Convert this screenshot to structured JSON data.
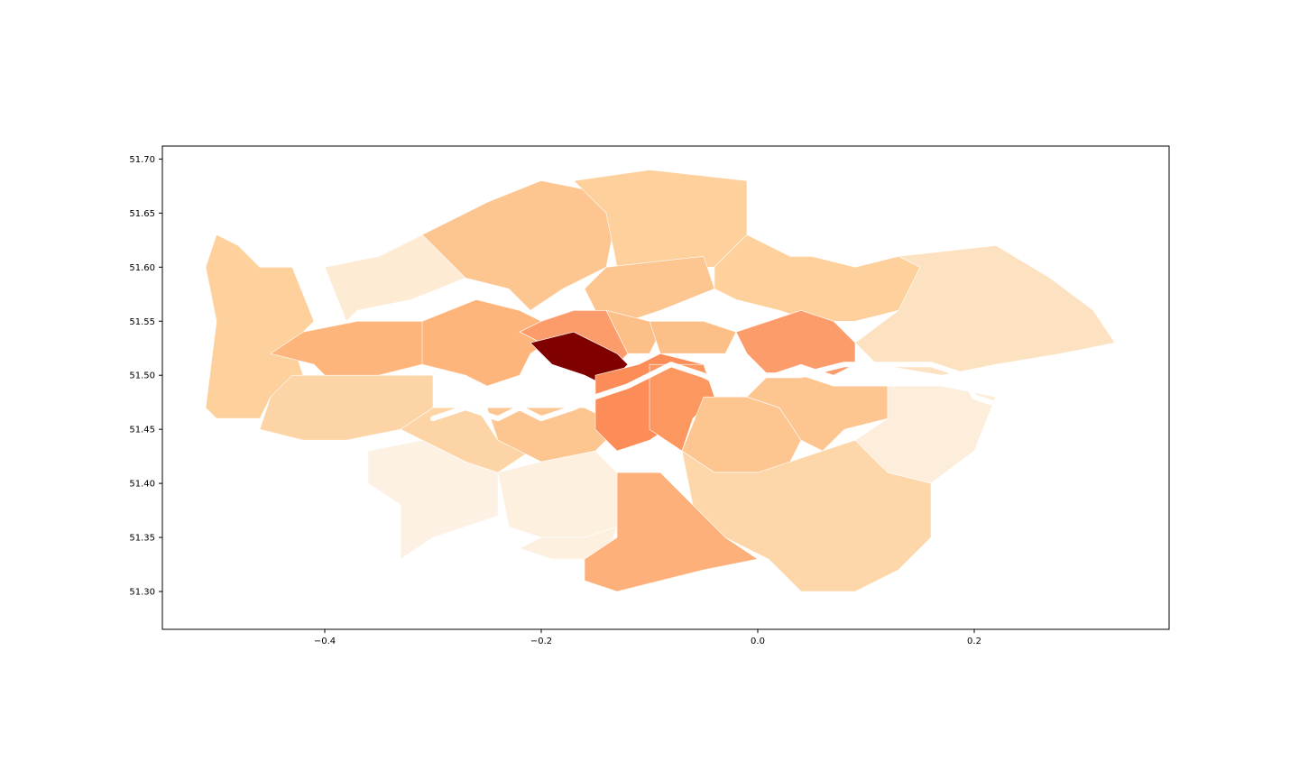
{
  "chart_data": {
    "type": "choropleth",
    "title": "",
    "xlabel": "",
    "ylabel": "",
    "xlim": [
      -0.55,
      0.38
    ],
    "ylim": [
      51.265,
      51.712
    ],
    "x_ticks": [
      -0.4,
      -0.2,
      0.0,
      0.2
    ],
    "x_tick_labels": [
      "−0.4",
      "−0.2",
      "0.0",
      "0.2"
    ],
    "y_ticks": [
      51.3,
      51.35,
      51.4,
      51.45,
      51.5,
      51.55,
      51.6,
      51.65,
      51.7
    ],
    "y_tick_labels": [
      "51.30",
      "51.35",
      "51.40",
      "51.45",
      "51.50",
      "51.55",
      "51.60",
      "51.65",
      "51.70"
    ],
    "grid": false,
    "legend": "none",
    "colormap": "Oranges",
    "river_color": "#ffffff",
    "regions": [
      {
        "color": "#fdd09c",
        "points": [
          [
            -0.5,
            51.63
          ],
          [
            -0.48,
            51.62
          ],
          [
            -0.46,
            51.6
          ],
          [
            -0.43,
            51.6
          ],
          [
            -0.41,
            51.55
          ],
          [
            -0.43,
            51.53
          ],
          [
            -0.42,
            51.5
          ],
          [
            -0.45,
            51.48
          ],
          [
            -0.46,
            51.46
          ],
          [
            -0.5,
            51.46
          ],
          [
            -0.51,
            51.47
          ],
          [
            -0.5,
            51.55
          ],
          [
            -0.51,
            51.6
          ]
        ]
      },
      {
        "color": "#fdebd4",
        "points": [
          [
            -0.4,
            51.6
          ],
          [
            -0.35,
            51.61
          ],
          [
            -0.31,
            51.63
          ],
          [
            -0.27,
            51.59
          ],
          [
            -0.32,
            51.57
          ],
          [
            -0.37,
            51.56
          ],
          [
            -0.38,
            51.55
          ]
        ]
      },
      {
        "color": "#fdc590",
        "points": [
          [
            -0.31,
            51.63
          ],
          [
            -0.25,
            51.66
          ],
          [
            -0.2,
            51.68
          ],
          [
            -0.15,
            51.67
          ],
          [
            -0.13,
            51.65
          ],
          [
            -0.14,
            51.6
          ],
          [
            -0.18,
            51.58
          ],
          [
            -0.21,
            51.56
          ],
          [
            -0.23,
            51.58
          ],
          [
            -0.27,
            51.59
          ]
        ]
      },
      {
        "color": "#fdd09c",
        "points": [
          [
            -0.17,
            51.68
          ],
          [
            -0.1,
            51.69
          ],
          [
            -0.01,
            51.68
          ],
          [
            -0.01,
            51.63
          ],
          [
            -0.04,
            51.6
          ],
          [
            -0.13,
            51.6
          ],
          [
            -0.14,
            51.65
          ]
        ]
      },
      {
        "color": "#fdc590",
        "points": [
          [
            -0.14,
            51.6
          ],
          [
            -0.05,
            51.61
          ],
          [
            -0.04,
            51.58
          ],
          [
            -0.09,
            51.56
          ],
          [
            -0.12,
            51.55
          ],
          [
            -0.15,
            51.56
          ],
          [
            -0.16,
            51.58
          ]
        ]
      },
      {
        "color": "#fdd09c",
        "points": [
          [
            -0.01,
            51.63
          ],
          [
            0.03,
            51.61
          ],
          [
            0.05,
            51.61
          ],
          [
            0.09,
            51.6
          ],
          [
            0.13,
            51.61
          ],
          [
            0.15,
            51.6
          ],
          [
            0.13,
            51.56
          ],
          [
            0.09,
            51.55
          ],
          [
            0.05,
            51.55
          ],
          [
            0.02,
            51.56
          ],
          [
            -0.02,
            51.57
          ],
          [
            -0.04,
            51.58
          ],
          [
            -0.04,
            51.6
          ]
        ]
      },
      {
        "color": "#fde2c2",
        "points": [
          [
            0.13,
            51.61
          ],
          [
            0.22,
            51.62
          ],
          [
            0.27,
            51.59
          ],
          [
            0.31,
            51.56
          ],
          [
            0.33,
            51.53
          ],
          [
            0.28,
            51.52
          ],
          [
            0.22,
            51.51
          ],
          [
            0.17,
            51.5
          ],
          [
            0.11,
            51.51
          ],
          [
            0.09,
            51.53
          ],
          [
            0.13,
            51.56
          ],
          [
            0.15,
            51.6
          ]
        ]
      },
      {
        "color": "#fdb57c",
        "points": [
          [
            -0.31,
            51.55
          ],
          [
            -0.26,
            51.57
          ],
          [
            -0.22,
            51.56
          ],
          [
            -0.18,
            51.54
          ],
          [
            -0.21,
            51.52
          ],
          [
            -0.22,
            51.5
          ],
          [
            -0.25,
            51.49
          ],
          [
            -0.27,
            51.5
          ],
          [
            -0.31,
            51.51
          ],
          [
            -0.35,
            51.5
          ],
          [
            -0.37,
            51.52
          ],
          [
            -0.42,
            51.54
          ]
        ]
      },
      {
        "color": "#fdb57c",
        "points": [
          [
            -0.42,
            51.54
          ],
          [
            -0.37,
            51.55
          ],
          [
            -0.31,
            51.55
          ],
          [
            -0.31,
            51.51
          ],
          [
            -0.35,
            51.5
          ],
          [
            -0.39,
            51.49
          ],
          [
            -0.41,
            51.51
          ],
          [
            -0.45,
            51.52
          ]
        ]
      },
      {
        "color": "#fc9c6b",
        "points": [
          [
            -0.2,
            51.55
          ],
          [
            -0.17,
            51.56
          ],
          [
            -0.14,
            51.56
          ],
          [
            -0.12,
            51.52
          ],
          [
            -0.13,
            51.51
          ],
          [
            -0.16,
            51.53
          ],
          [
            -0.2,
            51.53
          ],
          [
            -0.22,
            51.54
          ]
        ]
      },
      {
        "color": "#800000",
        "points": [
          [
            -0.21,
            51.53
          ],
          [
            -0.17,
            51.54
          ],
          [
            -0.15,
            51.53
          ],
          [
            -0.13,
            51.52
          ],
          [
            -0.12,
            51.51
          ],
          [
            -0.14,
            51.49
          ],
          [
            -0.16,
            51.5
          ],
          [
            -0.19,
            51.51
          ]
        ]
      },
      {
        "color": "#fdbf88",
        "points": [
          [
            -0.14,
            51.56
          ],
          [
            -0.1,
            51.55
          ],
          [
            -0.09,
            51.54
          ],
          [
            -0.1,
            51.52
          ],
          [
            -0.12,
            51.52
          ]
        ]
      },
      {
        "color": "#fdbf88",
        "points": [
          [
            -0.1,
            51.55
          ],
          [
            -0.05,
            51.55
          ],
          [
            -0.02,
            51.54
          ],
          [
            -0.03,
            51.52
          ],
          [
            -0.07,
            51.52
          ],
          [
            -0.09,
            51.52
          ]
        ]
      },
      {
        "color": "#fc9c6b",
        "points": [
          [
            -0.02,
            51.54
          ],
          [
            0.04,
            51.56
          ],
          [
            0.07,
            51.55
          ],
          [
            0.09,
            51.53
          ],
          [
            0.09,
            51.51
          ],
          [
            0.07,
            51.5
          ],
          [
            0.04,
            51.51
          ],
          [
            0.01,
            51.5
          ],
          [
            -0.01,
            51.52
          ]
        ]
      },
      {
        "color": "#fdd4a5",
        "points": [
          [
            -0.43,
            51.5
          ],
          [
            -0.35,
            51.5
          ],
          [
            -0.3,
            51.5
          ],
          [
            -0.3,
            51.47
          ],
          [
            -0.33,
            51.45
          ],
          [
            -0.38,
            51.44
          ],
          [
            -0.42,
            51.44
          ],
          [
            -0.46,
            51.45
          ],
          [
            -0.45,
            51.48
          ]
        ]
      },
      {
        "color": "#fdd4a5",
        "points": [
          [
            -0.33,
            51.45
          ],
          [
            -0.3,
            51.47
          ],
          [
            -0.26,
            51.47
          ],
          [
            -0.24,
            51.44
          ],
          [
            -0.21,
            51.43
          ],
          [
            -0.24,
            51.41
          ],
          [
            -0.27,
            51.42
          ],
          [
            -0.31,
            51.44
          ]
        ]
      },
      {
        "color": "#fdf1e4",
        "points": [
          [
            -0.31,
            51.44
          ],
          [
            -0.27,
            51.42
          ],
          [
            -0.24,
            51.41
          ],
          [
            -0.24,
            51.37
          ],
          [
            -0.3,
            51.35
          ],
          [
            -0.33,
            51.33
          ],
          [
            -0.33,
            51.38
          ],
          [
            -0.36,
            51.4
          ],
          [
            -0.36,
            51.43
          ]
        ]
      },
      {
        "color": "#fdf0df",
        "points": [
          [
            -0.24,
            51.41
          ],
          [
            -0.2,
            51.42
          ],
          [
            -0.15,
            51.43
          ],
          [
            -0.13,
            51.41
          ],
          [
            -0.13,
            51.36
          ],
          [
            -0.16,
            51.35
          ],
          [
            -0.2,
            51.35
          ],
          [
            -0.23,
            51.36
          ]
        ]
      },
      {
        "color": "#fdf0df",
        "points": [
          [
            -0.2,
            51.35
          ],
          [
            -0.16,
            51.35
          ],
          [
            -0.13,
            51.36
          ],
          [
            -0.14,
            51.33
          ],
          [
            -0.19,
            51.33
          ],
          [
            -0.22,
            51.34
          ]
        ]
      },
      {
        "color": "#fdc590",
        "points": [
          [
            -0.25,
            51.47
          ],
          [
            -0.2,
            51.47
          ],
          [
            -0.16,
            51.47
          ],
          [
            -0.14,
            51.46
          ],
          [
            -0.14,
            51.44
          ],
          [
            -0.15,
            51.43
          ],
          [
            -0.2,
            51.42
          ],
          [
            -0.24,
            51.44
          ]
        ]
      },
      {
        "color": "#fc8d59",
        "points": [
          [
            -0.15,
            51.5
          ],
          [
            -0.11,
            51.51
          ],
          [
            -0.09,
            51.52
          ],
          [
            -0.05,
            51.51
          ],
          [
            -0.06,
            51.48
          ],
          [
            -0.07,
            51.46
          ],
          [
            -0.1,
            51.44
          ],
          [
            -0.13,
            51.43
          ],
          [
            -0.15,
            51.45
          ]
        ]
      },
      {
        "color": "#fd9760",
        "points": [
          [
            -0.1,
            51.51
          ],
          [
            -0.07,
            51.51
          ],
          [
            -0.05,
            51.51
          ],
          [
            -0.04,
            51.48
          ],
          [
            -0.06,
            51.46
          ],
          [
            -0.07,
            51.43
          ],
          [
            -0.1,
            51.45
          ]
        ]
      },
      {
        "color": "#fdc590",
        "points": [
          [
            -0.05,
            51.48
          ],
          [
            -0.01,
            51.48
          ],
          [
            0.02,
            51.47
          ],
          [
            0.04,
            51.44
          ],
          [
            0.03,
            51.42
          ],
          [
            0.0,
            51.41
          ],
          [
            -0.04,
            51.41
          ],
          [
            -0.07,
            51.43
          ]
        ]
      },
      {
        "color": "#fdc590",
        "points": [
          [
            0.01,
            51.5
          ],
          [
            0.04,
            51.5
          ],
          [
            0.07,
            51.49
          ],
          [
            0.12,
            51.49
          ],
          [
            0.12,
            51.46
          ],
          [
            0.08,
            51.45
          ],
          [
            0.06,
            51.43
          ],
          [
            0.04,
            51.44
          ],
          [
            0.02,
            51.47
          ],
          [
            -0.01,
            51.48
          ]
        ]
      },
      {
        "color": "#fdeedb",
        "points": [
          [
            0.12,
            51.49
          ],
          [
            0.17,
            51.49
          ],
          [
            0.22,
            51.48
          ],
          [
            0.2,
            51.43
          ],
          [
            0.16,
            51.4
          ],
          [
            0.12,
            51.41
          ],
          [
            0.09,
            51.44
          ],
          [
            0.12,
            51.46
          ]
        ]
      },
      {
        "color": "#fdd6a9",
        "points": [
          [
            -0.07,
            51.43
          ],
          [
            -0.04,
            51.41
          ],
          [
            0.0,
            51.41
          ],
          [
            0.03,
            51.42
          ],
          [
            0.06,
            51.43
          ],
          [
            0.09,
            51.44
          ],
          [
            0.12,
            51.41
          ],
          [
            0.16,
            51.4
          ],
          [
            0.16,
            51.35
          ],
          [
            0.13,
            51.32
          ],
          [
            0.09,
            51.3
          ],
          [
            0.04,
            51.3
          ],
          [
            0.01,
            51.33
          ],
          [
            -0.03,
            51.35
          ],
          [
            -0.06,
            51.38
          ]
        ]
      },
      {
        "color": "#fdb07a",
        "points": [
          [
            -0.13,
            51.41
          ],
          [
            -0.09,
            51.41
          ],
          [
            -0.06,
            51.38
          ],
          [
            -0.03,
            51.35
          ],
          [
            0.0,
            51.33
          ],
          [
            -0.05,
            51.32
          ],
          [
            -0.09,
            51.31
          ],
          [
            -0.13,
            51.3
          ],
          [
            -0.16,
            51.31
          ],
          [
            -0.16,
            51.33
          ],
          [
            -0.13,
            51.35
          ]
        ]
      }
    ],
    "river": [
      [
        -0.3,
        51.46
      ],
      [
        -0.27,
        51.47
      ],
      [
        -0.24,
        51.46
      ],
      [
        -0.22,
        51.47
      ],
      [
        -0.2,
        51.46
      ],
      [
        -0.17,
        51.47
      ],
      [
        -0.15,
        51.48
      ],
      [
        -0.12,
        51.49
      ],
      [
        -0.1,
        51.5
      ],
      [
        -0.08,
        51.51
      ],
      [
        -0.05,
        51.5
      ],
      [
        -0.03,
        51.49
      ],
      [
        -0.01,
        51.5
      ],
      [
        0.01,
        51.5
      ],
      [
        0.04,
        51.5
      ],
      [
        0.08,
        51.51
      ],
      [
        0.12,
        51.51
      ],
      [
        0.16,
        51.51
      ],
      [
        0.19,
        51.5
      ],
      [
        0.2,
        51.48
      ],
      [
        0.23,
        51.47
      ]
    ]
  }
}
